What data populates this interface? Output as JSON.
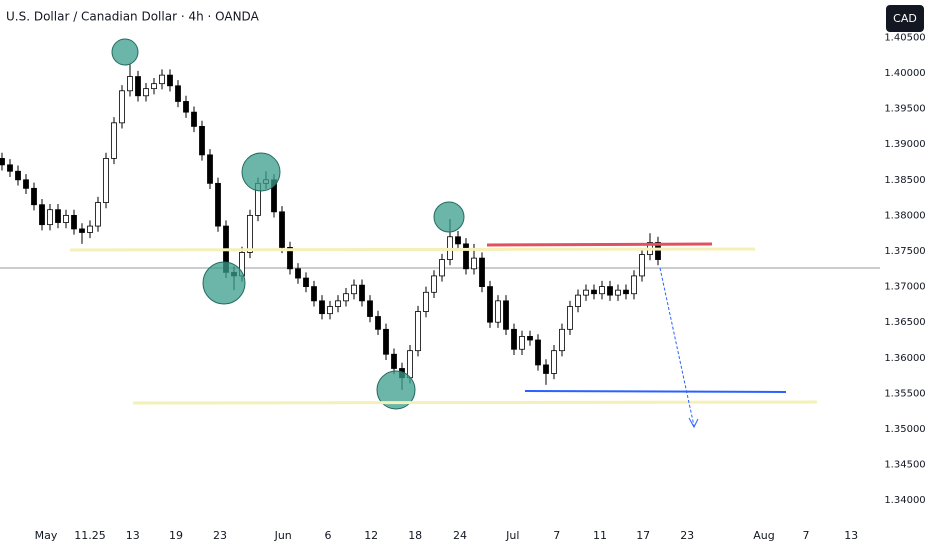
{
  "chart_data": {
    "type": "candlestick",
    "title": "U.S. Dollar / Canadian Dollar · 4h · OANDA",
    "currency": "CAD",
    "up_color": "#ffffff",
    "down_color": "#000000",
    "wick_color": "#000000",
    "xlim": [
      0,
      110
    ],
    "ylim": [
      1.33694,
      1.41025
    ],
    "xticks": [
      {
        "value": 5.75,
        "label": "May"
      },
      11.25,
      {
        "value": 16.6,
        "label": "13"
      },
      {
        "value": 22,
        "label": "19"
      },
      {
        "value": 27.5,
        "label": "23"
      },
      {
        "value": 35.4,
        "label": "Jun"
      },
      {
        "value": 41,
        "label": "6"
      },
      {
        "value": 46.4,
        "label": "12"
      },
      {
        "value": 51.9,
        "label": "18"
      },
      {
        "value": 57.5,
        "label": "24"
      },
      {
        "value": 64.1,
        "label": "Jul"
      },
      {
        "value": 69.6,
        "label": "7"
      },
      {
        "value": 75,
        "label": "11"
      },
      {
        "value": 80.4,
        "label": "17"
      },
      {
        "value": 85.9,
        "label": "23"
      },
      {
        "value": 95.5,
        "label": "Aug"
      },
      {
        "value": 100.75,
        "label": "7"
      },
      {
        "value": 106.4,
        "label": "13"
      }
    ],
    "yticks": [
      {
        "value": 1.34,
        "label": "1.34000"
      },
      {
        "value": 1.345,
        "label": "1.34500"
      },
      {
        "value": 1.35,
        "label": "1.35000"
      },
      {
        "value": 1.355,
        "label": "1.35500"
      },
      {
        "value": 1.36,
        "label": "1.36000"
      },
      {
        "value": 1.365,
        "label": "1.36500"
      },
      {
        "value": 1.37,
        "label": "1.37000"
      },
      {
        "value": 1.375,
        "label": "1.37500"
      },
      {
        "value": 1.38,
        "label": "1.38000"
      },
      {
        "value": 1.385,
        "label": "1.38500"
      },
      {
        "value": 1.39,
        "label": "1.39000"
      },
      {
        "value": 1.395,
        "label": "1.39500"
      },
      {
        "value": 1.4,
        "label": "1.40000"
      },
      {
        "value": 1.405,
        "label": "1.40500"
      }
    ],
    "open": [
      1.388,
      1.3871,
      1.3862,
      1.385,
      1.3838,
      1.3815,
      1.3787,
      1.3808,
      1.379,
      1.38,
      1.3781,
      1.3776,
      1.3785,
      1.3818,
      1.388,
      1.393,
      1.3975,
      1.3995,
      1.3968,
      1.3978,
      1.3985,
      1.3997,
      1.3982,
      1.396,
      1.3945,
      1.3925,
      1.3885,
      1.3845,
      1.3785,
      1.372,
      1.3715,
      1.3748,
      1.38,
      1.3845,
      1.385,
      1.3805,
      1.3755,
      1.3725,
      1.3712,
      1.37,
      1.368,
      1.3662,
      1.3672,
      1.368,
      1.369,
      1.3702,
      1.368,
      1.3658,
      1.364,
      1.3605,
      1.3585,
      1.3572,
      1.361,
      1.3665,
      1.3692,
      1.3715,
      1.3738,
      1.377,
      1.376,
      1.3725,
      1.374,
      1.37,
      1.365,
      1.368,
      1.364,
      1.3612,
      1.363,
      1.3625,
      1.359,
      1.3578,
      1.361,
      1.364,
      1.3672,
      1.3688,
      1.3695,
      1.369,
      1.37,
      1.3688,
      1.3695,
      1.369,
      1.3715,
      1.3745,
      1.3762
    ],
    "high": [
      1.3888,
      1.3879,
      1.387,
      1.3858,
      1.3846,
      1.3823,
      1.3816,
      1.3816,
      1.3808,
      1.3808,
      1.3789,
      1.3793,
      1.3826,
      1.3888,
      1.3938,
      1.3983,
      1.4012,
      1.4003,
      1.3986,
      1.3993,
      1.4005,
      1.4005,
      1.399,
      1.3968,
      1.3953,
      1.3933,
      1.3893,
      1.3853,
      1.3793,
      1.3728,
      1.3756,
      1.3808,
      1.3853,
      1.3862,
      1.3858,
      1.3813,
      1.3763,
      1.3733,
      1.372,
      1.3708,
      1.3688,
      1.368,
      1.3688,
      1.3698,
      1.371,
      1.371,
      1.3688,
      1.3666,
      1.3648,
      1.3613,
      1.3593,
      1.3618,
      1.3673,
      1.37,
      1.3723,
      1.3746,
      1.3795,
      1.3778,
      1.3768,
      1.376,
      1.3748,
      1.3708,
      1.3688,
      1.3688,
      1.3648,
      1.3638,
      1.3638,
      1.3633,
      1.3598,
      1.3618,
      1.3648,
      1.368,
      1.3696,
      1.3703,
      1.3703,
      1.3708,
      1.3708,
      1.3703,
      1.3703,
      1.3723,
      1.3753,
      1.3775,
      1.377
    ],
    "low": [
      1.3863,
      1.3854,
      1.3842,
      1.383,
      1.3807,
      1.3779,
      1.3779,
      1.3782,
      1.3782,
      1.3773,
      1.376,
      1.3768,
      1.3777,
      1.381,
      1.3872,
      1.3922,
      1.3967,
      1.396,
      1.396,
      1.397,
      1.3977,
      1.3974,
      1.3952,
      1.3937,
      1.3917,
      1.3877,
      1.3837,
      1.3777,
      1.3712,
      1.3695,
      1.3707,
      1.374,
      1.3792,
      1.3837,
      1.3797,
      1.3747,
      1.3717,
      1.3704,
      1.3692,
      1.3672,
      1.3654,
      1.3654,
      1.3664,
      1.3672,
      1.3682,
      1.3672,
      1.365,
      1.3632,
      1.3597,
      1.3577,
      1.3555,
      1.3564,
      1.3602,
      1.3657,
      1.3684,
      1.3707,
      1.373,
      1.3752,
      1.3717,
      1.3717,
      1.3692,
      1.3642,
      1.3642,
      1.3632,
      1.3604,
      1.3604,
      1.3617,
      1.3582,
      1.3562,
      1.357,
      1.3602,
      1.3632,
      1.3664,
      1.368,
      1.3682,
      1.3682,
      1.368,
      1.368,
      1.3682,
      1.3682,
      1.3707,
      1.3737,
      1.373
    ],
    "close": [
      1.3871,
      1.3862,
      1.385,
      1.3838,
      1.3815,
      1.3787,
      1.3808,
      1.379,
      1.38,
      1.3781,
      1.3776,
      1.3785,
      1.3818,
      1.388,
      1.393,
      1.3975,
      1.3995,
      1.3968,
      1.3978,
      1.3985,
      1.3997,
      1.3982,
      1.396,
      1.3945,
      1.3925,
      1.3885,
      1.3845,
      1.3785,
      1.372,
      1.3715,
      1.3748,
      1.38,
      1.3845,
      1.385,
      1.3805,
      1.3755,
      1.3725,
      1.3712,
      1.37,
      1.368,
      1.3662,
      1.3672,
      1.368,
      1.369,
      1.3702,
      1.368,
      1.3658,
      1.364,
      1.3605,
      1.3585,
      1.3572,
      1.361,
      1.3665,
      1.3692,
      1.3715,
      1.3738,
      1.377,
      1.376,
      1.3725,
      1.374,
      1.37,
      1.365,
      1.368,
      1.364,
      1.3612,
      1.363,
      1.3625,
      1.359,
      1.3578,
      1.361,
      1.364,
      1.3672,
      1.3688,
      1.3695,
      1.369,
      1.37,
      1.3688,
      1.3695,
      1.369,
      1.3715,
      1.3745,
      1.3762,
      1.3738
    ]
  }
}
